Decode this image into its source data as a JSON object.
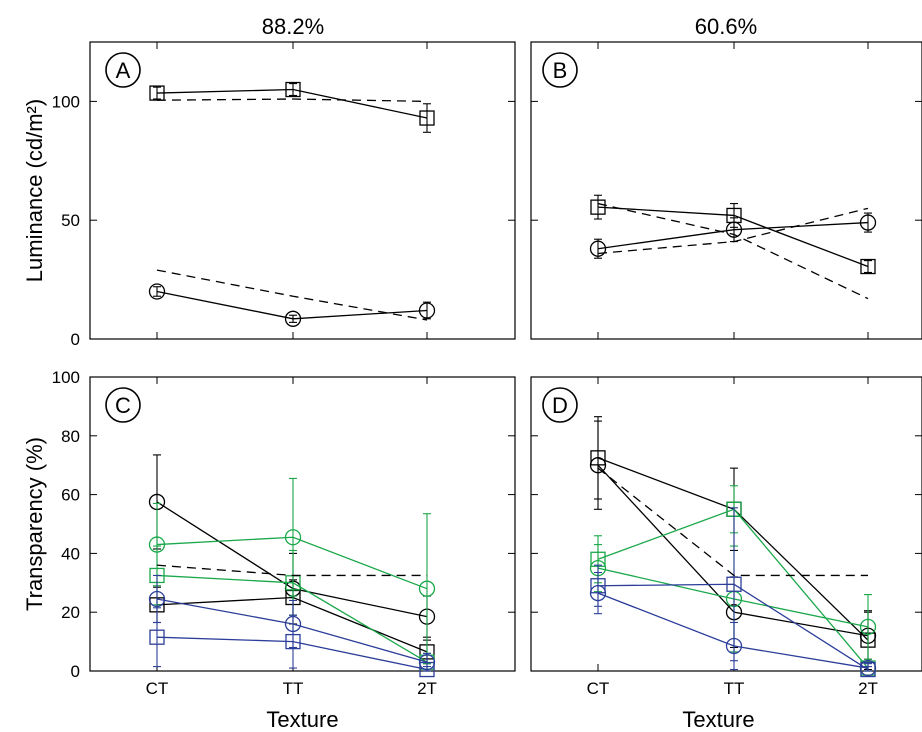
{
  "chart_data": [
    {
      "type": "line",
      "panel_label": "A",
      "title": "88.2%",
      "ylabel": "Luminance (cd/m²)",
      "xlabel": "",
      "categories": [
        "CT",
        "TT",
        "2T"
      ],
      "ylim": [
        0,
        125
      ],
      "yticks": [
        0,
        50,
        100
      ],
      "grid": false,
      "series": [
        {
          "marker": "square",
          "color": "#000000",
          "dash": false,
          "values": [
            103.5,
            105,
            93
          ],
          "err": [
            2.5,
            2.5,
            6
          ]
        },
        {
          "marker": "none",
          "color": "#000000",
          "dash": true,
          "values": [
            100.5,
            101,
            100
          ]
        },
        {
          "marker": "circle",
          "color": "#000000",
          "dash": false,
          "values": [
            20,
            8.5,
            12
          ],
          "err": [
            2,
            1.5,
            3.5
          ]
        },
        {
          "marker": "none",
          "color": "#000000",
          "dash": true,
          "values": [
            29,
            18,
            8
          ]
        }
      ]
    },
    {
      "type": "line",
      "panel_label": "B",
      "title": "60.6%",
      "ylabel": "",
      "xlabel": "",
      "categories": [
        "CT",
        "TT",
        "2T"
      ],
      "ylim": [
        0,
        125
      ],
      "yticks": [
        0,
        50,
        100
      ],
      "grid": false,
      "series": [
        {
          "marker": "square",
          "color": "#000000",
          "dash": false,
          "values": [
            55.5,
            52,
            30.5
          ],
          "err": [
            5,
            5,
            2.5
          ]
        },
        {
          "marker": "none",
          "color": "#000000",
          "dash": true,
          "values": [
            57,
            44,
            17
          ]
        },
        {
          "marker": "circle",
          "color": "#000000",
          "dash": false,
          "values": [
            38,
            46,
            49
          ],
          "err": [
            4,
            5,
            4
          ]
        },
        {
          "marker": "none",
          "color": "#000000",
          "dash": true,
          "values": [
            36,
            41,
            55
          ]
        }
      ]
    },
    {
      "type": "line",
      "panel_label": "C",
      "title": "",
      "ylabel": "Transparency (%)",
      "xlabel": "Texture",
      "categories": [
        "CT",
        "TT",
        "2T"
      ],
      "ylim": [
        0,
        100
      ],
      "yticks": [
        0,
        20,
        40,
        60,
        80,
        100
      ],
      "grid": false,
      "series": [
        {
          "marker": "circle",
          "color": "#000000",
          "dash": false,
          "values": [
            57.5,
            28,
            18.5
          ],
          "err": [
            16,
            12,
            7
          ]
        },
        {
          "marker": "square",
          "color": "#000000",
          "dash": false,
          "values": [
            22.5,
            25,
            6.5
          ],
          "err": [
            6,
            6,
            4
          ]
        },
        {
          "marker": "circle",
          "color": "#1aa84a",
          "dash": false,
          "values": [
            43,
            45.5,
            28
          ],
          "err": [
            14,
            20,
            25.5
          ]
        },
        {
          "marker": "square",
          "color": "#1aa84a",
          "dash": false,
          "values": [
            32.5,
            30,
            3
          ],
          "err": [
            10,
            11,
            3
          ]
        },
        {
          "marker": "circle",
          "color": "#2c3e99",
          "dash": false,
          "values": [
            24.5,
            16,
            3
          ],
          "err": [
            8,
            8,
            3
          ]
        },
        {
          "marker": "square",
          "color": "#2c3e99",
          "dash": false,
          "values": [
            11.5,
            10,
            0.5
          ],
          "err": [
            10,
            9,
            1
          ]
        },
        {
          "marker": "none",
          "color": "#000000",
          "dash": true,
          "values": [
            36,
            32.5,
            32.5
          ]
        }
      ]
    },
    {
      "type": "line",
      "panel_label": "D",
      "title": "",
      "ylabel": "",
      "xlabel": "Texture",
      "categories": [
        "CT",
        "TT",
        "2T"
      ],
      "ylim": [
        0,
        100
      ],
      "yticks": [
        0,
        20,
        40,
        60,
        80,
        100
      ],
      "grid": false,
      "series": [
        {
          "marker": "circle",
          "color": "#000000",
          "dash": false,
          "values": [
            70,
            20,
            12
          ],
          "err": [
            15,
            12,
            8
          ]
        },
        {
          "marker": "square",
          "color": "#000000",
          "dash": false,
          "values": [
            72.5,
            55,
            10.5
          ],
          "err": [
            14,
            14,
            10
          ]
        },
        {
          "marker": "circle",
          "color": "#1aa84a",
          "dash": false,
          "values": [
            35,
            24.5,
            15
          ],
          "err": [
            8,
            18,
            11
          ]
        },
        {
          "marker": "square",
          "color": "#1aa84a",
          "dash": false,
          "values": [
            38,
            55,
            1
          ],
          "err": [
            8,
            8,
            2
          ]
        },
        {
          "marker": "circle",
          "color": "#2c3e99",
          "dash": false,
          "values": [
            26.5,
            8.5,
            1
          ],
          "err": [
            7,
            8,
            1.5
          ]
        },
        {
          "marker": "square",
          "color": "#2c3e99",
          "dash": false,
          "values": [
            29,
            29.5,
            0.5
          ],
          "err": [
            7,
            26,
            1
          ]
        },
        {
          "marker": "none",
          "color": "#000000",
          "dash": true,
          "values": [
            69,
            32.5,
            32.5
          ]
        }
      ]
    }
  ]
}
